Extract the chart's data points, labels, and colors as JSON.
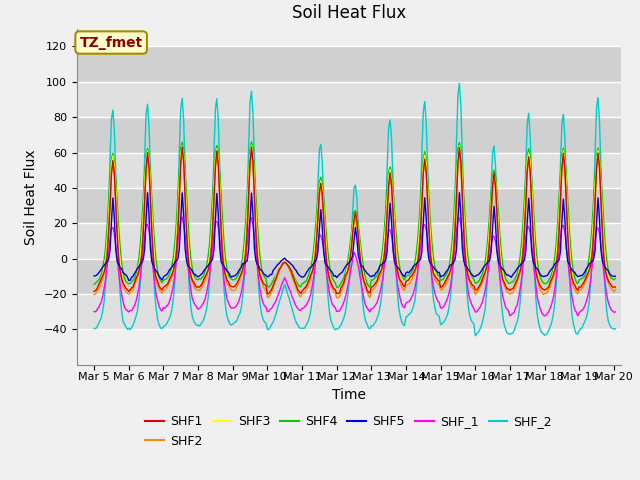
{
  "title": "Soil Heat Flux",
  "xlabel": "Time",
  "ylabel": "Soil Heat Flux",
  "ylim": [
    -60,
    130
  ],
  "yticks": [
    -40,
    -20,
    0,
    20,
    40,
    60,
    80,
    100,
    120
  ],
  "xlim_days": [
    4.5,
    20.2
  ],
  "xtick_days": [
    5,
    6,
    7,
    8,
    9,
    10,
    11,
    12,
    13,
    14,
    15,
    16,
    17,
    18,
    19,
    20
  ],
  "xtick_labels": [
    "Mar 5",
    "Mar 6",
    "Mar 7",
    "Mar 8",
    "Mar 9",
    "Mar 10",
    "Mar 11",
    "Mar 12",
    "Mar 13",
    "Mar 14",
    "Mar 15",
    "Mar 16",
    "Mar 17",
    "Mar 18",
    "Mar 19",
    "Mar 20"
  ],
  "series_colors": {
    "SHF1": "#dd0000",
    "SHF2": "#ff8800",
    "SHF3": "#ffff00",
    "SHF4": "#00cc00",
    "SHF5": "#0000dd",
    "SHF_1": "#ff00ff",
    "SHF_2": "#00cccc"
  },
  "legend_label": "TZ_fmet",
  "legend_color": "#880000",
  "legend_bg": "#ffffcc",
  "legend_border": "#aa8800",
  "bg_strip1": "#e8e8e8",
  "bg_strip2": "#d8d8d8",
  "grid_color": "#ffffff",
  "title_fontsize": 12,
  "axis_label_fontsize": 10,
  "tick_fontsize": 8,
  "legend_fontsize": 9
}
